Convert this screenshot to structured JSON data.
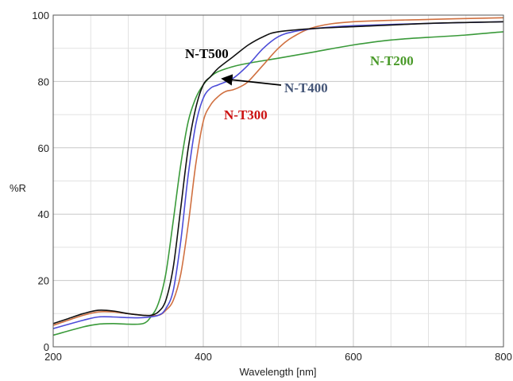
{
  "chart_data": {
    "type": "line",
    "xlabel": "Wavelength [nm]",
    "ylabel": "%R",
    "xlim": [
      200,
      800
    ],
    "ylim": [
      0,
      100
    ],
    "xticks": [
      200,
      400,
      600,
      800
    ],
    "yticks": [
      0,
      20,
      40,
      60,
      80,
      100
    ],
    "grid": true,
    "series": [
      {
        "name": "N-T200",
        "color": "#3a9a3a",
        "label_color": "#4a9a2a",
        "x": [
          200,
          240,
          260,
          280,
          300,
          320,
          330,
          340,
          350,
          360,
          370,
          380,
          390,
          400,
          410,
          420,
          440,
          460,
          500,
          550,
          600,
          650,
          700,
          750,
          800
        ],
        "y": [
          3.5,
          6.0,
          6.8,
          7.0,
          6.8,
          7.0,
          9.0,
          13.0,
          22.0,
          38.0,
          55.0,
          68.0,
          75.0,
          79.0,
          81.5,
          83.0,
          84.5,
          85.5,
          87.0,
          89.0,
          91.0,
          92.5,
          93.3,
          94.0,
          95.0
        ]
      },
      {
        "name": "N-T300",
        "color": "#d07040",
        "label_color": "#cc1111",
        "x": [
          200,
          220,
          240,
          260,
          280,
          300,
          320,
          340,
          350,
          360,
          370,
          380,
          390,
          400,
          410,
          420,
          430,
          440,
          450,
          460,
          480,
          500,
          520,
          550,
          600,
          700,
          800
        ],
        "y": [
          6.5,
          8.0,
          9.5,
          10.5,
          10.5,
          10.0,
          9.5,
          9.5,
          11.0,
          14.0,
          22.0,
          37.0,
          55.0,
          68.0,
          73.0,
          75.5,
          77.0,
          77.5,
          78.5,
          80.0,
          85.0,
          90.0,
          93.5,
          96.5,
          98.0,
          98.7,
          99.2
        ]
      },
      {
        "name": "N-T400",
        "color": "#4c4cd8",
        "label_color": "#445577",
        "x": [
          200,
          240,
          260,
          280,
          300,
          320,
          340,
          350,
          360,
          370,
          380,
          390,
          400,
          410,
          420,
          440,
          460,
          480,
          500,
          520,
          550,
          600,
          700,
          800
        ],
        "y": [
          5.5,
          8.0,
          9.0,
          9.0,
          8.8,
          8.8,
          9.5,
          11.5,
          17.0,
          32.0,
          52.0,
          67.0,
          75.0,
          78.0,
          79.0,
          81.0,
          85.0,
          90.0,
          93.5,
          95.0,
          96.0,
          96.8,
          97.5,
          98.0
        ]
      },
      {
        "name": "N-T500",
        "color": "#111111",
        "label_color": "#000000",
        "x": [
          200,
          220,
          240,
          260,
          280,
          300,
          320,
          330,
          340,
          350,
          360,
          370,
          380,
          390,
          400,
          410,
          420,
          440,
          460,
          480,
          500,
          550,
          600,
          700,
          800
        ],
        "y": [
          7.0,
          8.5,
          10.0,
          11.0,
          10.8,
          10.0,
          9.5,
          9.5,
          10.5,
          14.0,
          24.0,
          42.0,
          60.0,
          72.0,
          79.0,
          81.5,
          84.0,
          87.5,
          91.0,
          93.5,
          95.0,
          96.0,
          96.5,
          97.5,
          98.0
        ]
      }
    ],
    "annotations": [
      {
        "text": "N-T500",
        "series": "N-T500"
      },
      {
        "text": "N-T400",
        "series": "N-T400",
        "arrow": true
      },
      {
        "text": "N-T300",
        "series": "N-T300"
      },
      {
        "text": "N-T200",
        "series": "N-T200"
      }
    ]
  }
}
